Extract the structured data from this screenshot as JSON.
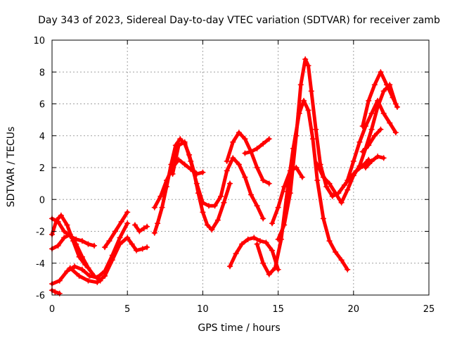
{
  "chart_data": {
    "type": "scatter",
    "title": "Day 343 of 2023, Sidereal Day-to-day VTEC variation (SDTVAR) for receiver zamb",
    "xlabel": "GPS time / hours",
    "ylabel": "SDTVAR / TECUs",
    "xlim": [
      0,
      25
    ],
    "ylim": [
      -6,
      10
    ],
    "xticks": [
      0,
      5,
      10,
      15,
      20,
      25
    ],
    "yticks": [
      -6,
      -4,
      -2,
      0,
      2,
      4,
      6,
      8,
      10
    ],
    "grid": true,
    "marker": "+",
    "color": "#ff0000",
    "series": [
      {
        "name": "arc-1",
        "x": [
          0,
          0.4,
          0.8,
          1.2,
          1.6,
          2.0,
          2.4,
          2.8
        ],
        "y": [
          -1.2,
          -1.4,
          -2.0,
          -2.3,
          -2.5,
          -2.6,
          -2.8,
          -2.9
        ]
      },
      {
        "name": "arc-2",
        "x": [
          0,
          0.4,
          0.8,
          1.2,
          1.6,
          2.0,
          2.4,
          2.8,
          3.2
        ],
        "y": [
          -3.1,
          -2.9,
          -2.4,
          -2.2,
          -2.8,
          -3.6,
          -4.3,
          -4.8,
          -5.1
        ]
      },
      {
        "name": "arc-3",
        "x": [
          0,
          0.3,
          0.6,
          1.0,
          1.4,
          1.8,
          2.2
        ],
        "y": [
          -2.2,
          -1.3,
          -1.0,
          -1.6,
          -2.6,
          -3.6,
          -4.1
        ]
      },
      {
        "name": "arc-4",
        "x": [
          0,
          0.2,
          0.5
        ],
        "y": [
          -5.7,
          -5.8,
          -5.9
        ]
      },
      {
        "name": "arc-5",
        "x": [
          0,
          0.5,
          1.0,
          1.5,
          2.0,
          2.5,
          3.0,
          3.5,
          4.0,
          4.5,
          5.0
        ],
        "y": [
          -5.3,
          -5.1,
          -4.5,
          -4.2,
          -4.4,
          -4.8,
          -4.9,
          -4.5,
          -3.5,
          -2.4,
          -1.5
        ]
      },
      {
        "name": "arc-6",
        "x": [
          1.2,
          1.8,
          2.4,
          3.0,
          3.5,
          4.0,
          4.5,
          5.0,
          5.3,
          5.6,
          6.0,
          6.3
        ],
        "y": [
          -4.3,
          -4.8,
          -5.1,
          -5.2,
          -4.8,
          -3.8,
          -2.8,
          -2.4,
          -2.8,
          -3.2,
          -3.1,
          -3.0
        ]
      },
      {
        "name": "arc-7",
        "x": [
          3.5,
          3.8,
          4.2,
          4.6,
          5.0
        ],
        "y": [
          -3.0,
          -2.6,
          -2.0,
          -1.4,
          -0.8
        ]
      },
      {
        "name": "arc-8",
        "x": [
          5.5,
          5.8,
          6.1,
          6.3
        ],
        "y": [
          -1.6,
          -2.0,
          -1.8,
          -1.7
        ]
      },
      {
        "name": "arc-9",
        "x": [
          6.8,
          7.0,
          7.3,
          7.6,
          7.9,
          8.2,
          8.5,
          8.8,
          9.1,
          9.4,
          9.7,
          10.0,
          10.3,
          10.6,
          11.0,
          11.4,
          11.8
        ],
        "y": [
          -2.1,
          -1.5,
          -0.5,
          0.8,
          2.2,
          3.4,
          3.8,
          3.5,
          2.8,
          1.8,
          0.4,
          -0.8,
          -1.6,
          -1.9,
          -1.3,
          -0.2,
          1.0
        ]
      },
      {
        "name": "arc-10",
        "x": [
          6.8,
          7.2,
          7.6,
          8.0,
          8.4,
          8.8,
          9.2,
          9.6,
          10.0
        ],
        "y": [
          -0.5,
          0.2,
          1.2,
          2.0,
          2.5,
          2.2,
          1.9,
          1.6,
          1.7
        ]
      },
      {
        "name": "arc-11",
        "x": [
          8.0,
          8.4,
          8.8,
          9.2,
          9.6,
          10.0,
          10.4,
          10.8,
          11.2,
          11.6,
          12.0,
          12.4,
          12.8,
          13.2,
          13.6,
          14.0
        ],
        "y": [
          1.6,
          3.4,
          3.6,
          2.4,
          1.0,
          -0.2,
          -0.4,
          -0.4,
          0.2,
          1.8,
          2.6,
          2.2,
          1.4,
          0.3,
          -0.4,
          -1.2
        ]
      },
      {
        "name": "arc-12",
        "x": [
          11.6,
          12.0,
          12.4,
          12.8,
          13.2,
          13.6,
          14.0,
          14.4
        ],
        "y": [
          2.4,
          3.6,
          4.2,
          3.8,
          3.0,
          2.0,
          1.2,
          1.0
        ]
      },
      {
        "name": "arc-13",
        "x": [
          12.8,
          13.2,
          13.6,
          14.0,
          14.4
        ],
        "y": [
          2.9,
          3.0,
          3.2,
          3.5,
          3.8
        ]
      },
      {
        "name": "arc-14",
        "x": [
          11.8,
          12.2,
          12.6,
          13.0,
          13.4,
          13.8,
          14.2,
          14.6,
          15.0
        ],
        "y": [
          -4.2,
          -3.4,
          -2.8,
          -2.5,
          -2.4,
          -2.6,
          -2.7,
          -3.2,
          -4.4
        ]
      },
      {
        "name": "arc-15",
        "x": [
          13.6,
          14.0,
          14.4,
          14.8,
          15.2,
          15.6,
          16.0,
          16.4,
          16.7,
          17.0,
          17.3,
          17.6,
          18.0,
          18.4,
          18.8,
          19.2,
          19.6
        ],
        "y": [
          -2.8,
          -4.0,
          -4.7,
          -4.3,
          -2.5,
          0.5,
          3.2,
          5.4,
          6.2,
          5.6,
          3.8,
          1.2,
          -1.2,
          -2.6,
          -3.3,
          -3.8,
          -4.4
        ]
      },
      {
        "name": "arc-16",
        "x": [
          15.0,
          15.4,
          15.8,
          16.2,
          16.5,
          16.8,
          17.0,
          17.2,
          17.5,
          17.8,
          18.2,
          18.6,
          19.0,
          19.4,
          19.8,
          20.2,
          20.6,
          21.0
        ],
        "y": [
          -2.5,
          -1.6,
          0.4,
          4.0,
          7.2,
          8.8,
          8.4,
          6.8,
          4.4,
          2.2,
          0.8,
          0.2,
          0.4,
          0.9,
          1.4,
          1.8,
          2.1,
          2.5
        ]
      },
      {
        "name": "arc-17",
        "x": [
          14.6,
          15.0,
          15.4,
          15.8,
          16.2,
          16.6
        ],
        "y": [
          -1.5,
          -0.5,
          0.8,
          1.8,
          2.0,
          1.4
        ]
      },
      {
        "name": "arc-18",
        "x": [
          17.6,
          18.0,
          18.4,
          18.8,
          19.2,
          19.6,
          20.0,
          20.4,
          20.8,
          21.2,
          21.6,
          22.0,
          22.4,
          22.8
        ],
        "y": [
          2.2,
          1.4,
          1.0,
          0.4,
          -0.2,
          0.6,
          1.5,
          2.1,
          3.2,
          4.4,
          5.8,
          6.8,
          7.2,
          6.0
        ]
      },
      {
        "name": "arc-19",
        "x": [
          19.6,
          20.0,
          20.4,
          20.8,
          21.2,
          21.6,
          22.0,
          22.4,
          22.8
        ],
        "y": [
          1.2,
          2.4,
          3.6,
          4.6,
          5.4,
          6.2,
          5.4,
          4.8,
          4.2
        ]
      },
      {
        "name": "arc-20",
        "x": [
          20.6,
          21.0,
          21.4,
          21.8,
          22.2,
          22.6,
          22.9
        ],
        "y": [
          4.6,
          6.2,
          7.2,
          8.0,
          7.2,
          6.4,
          5.8
        ]
      },
      {
        "name": "arc-21",
        "x": [
          20.8,
          21.2,
          21.6,
          22.0
        ],
        "y": [
          2.0,
          2.4,
          2.7,
          2.6
        ]
      },
      {
        "name": "arc-22",
        "x": [
          20.6,
          21.0,
          21.4,
          21.8
        ],
        "y": [
          3.0,
          3.4,
          4.0,
          4.4
        ]
      }
    ]
  }
}
